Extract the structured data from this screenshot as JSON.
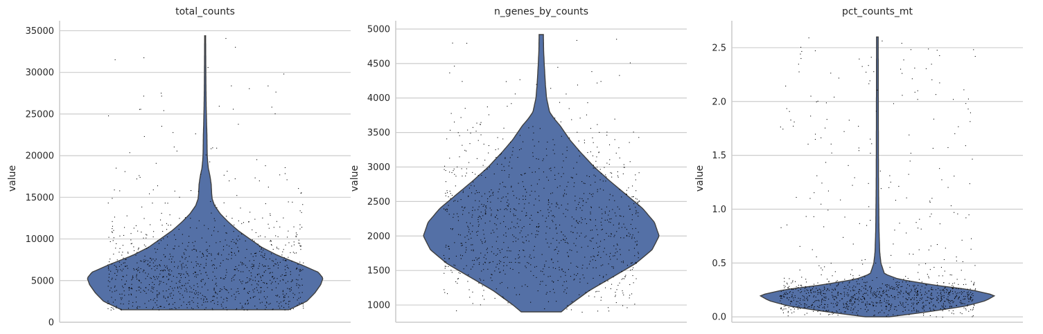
{
  "chart_data": [
    {
      "type": "violin",
      "title": "total_counts",
      "ylabel": "value",
      "ylim": [
        0,
        36200
      ],
      "yticks": [
        0,
        5000,
        10000,
        15000,
        20000,
        25000,
        30000,
        35000
      ],
      "data_range": [
        1500,
        34400
      ],
      "fill_color": "#5470a6",
      "grid": true,
      "density_profile": [
        [
          1500,
          0.71
        ],
        [
          2500,
          0.86
        ],
        [
          3500,
          0.93
        ],
        [
          4500,
          0.98
        ],
        [
          5300,
          1.0
        ],
        [
          6000,
          0.96
        ],
        [
          7000,
          0.8
        ],
        [
          8000,
          0.62
        ],
        [
          9000,
          0.48
        ],
        [
          10000,
          0.38
        ],
        [
          11000,
          0.28
        ],
        [
          12000,
          0.2
        ],
        [
          13000,
          0.13
        ],
        [
          14000,
          0.08
        ],
        [
          14800,
          0.06
        ],
        [
          15500,
          0.055
        ],
        [
          16500,
          0.052
        ],
        [
          17500,
          0.042
        ],
        [
          18500,
          0.027
        ],
        [
          19500,
          0.02
        ],
        [
          20500,
          0.017
        ],
        [
          21500,
          0.016
        ],
        [
          22500,
          0.015
        ],
        [
          24000,
          0.012
        ],
        [
          26000,
          0.009
        ],
        [
          28000,
          0.007
        ],
        [
          30000,
          0.006
        ],
        [
          32000,
          0.005
        ],
        [
          34400,
          0.004
        ]
      ]
    },
    {
      "type": "violin",
      "title": "n_genes_by_counts",
      "ylabel": "value",
      "ylim": [
        750,
        5120
      ],
      "yticks": [
        1000,
        1500,
        2000,
        2500,
        3000,
        3500,
        4000,
        4500,
        5000
      ],
      "data_range": [
        900,
        4920
      ],
      "fill_color": "#5470a6",
      "grid": true,
      "density_profile": [
        [
          900,
          0.17
        ],
        [
          1000,
          0.24
        ],
        [
          1200,
          0.4
        ],
        [
          1400,
          0.6
        ],
        [
          1600,
          0.8
        ],
        [
          1800,
          0.94
        ],
        [
          2000,
          1.0
        ],
        [
          2200,
          0.96
        ],
        [
          2400,
          0.86
        ],
        [
          2600,
          0.72
        ],
        [
          2800,
          0.58
        ],
        [
          3000,
          0.45
        ],
        [
          3200,
          0.34
        ],
        [
          3400,
          0.24
        ],
        [
          3600,
          0.16
        ],
        [
          3700,
          0.11
        ],
        [
          3800,
          0.07
        ],
        [
          4000,
          0.045
        ],
        [
          4200,
          0.035
        ],
        [
          4500,
          0.025
        ],
        [
          4700,
          0.02
        ],
        [
          4920,
          0.018
        ]
      ]
    },
    {
      "type": "violin",
      "title": "pct_counts_mt",
      "ylabel": "value",
      "ylim": [
        -0.05,
        2.75
      ],
      "yticks": [
        0.0,
        0.5,
        1.0,
        1.5,
        2.0,
        2.5
      ],
      "data_range": [
        0.0,
        2.6
      ],
      "fill_color": "#5470a6",
      "grid": true,
      "density_profile": [
        [
          0.0,
          0.1
        ],
        [
          0.05,
          0.45
        ],
        [
          0.1,
          0.75
        ],
        [
          0.15,
          0.92
        ],
        [
          0.2,
          1.0
        ],
        [
          0.25,
          0.8
        ],
        [
          0.3,
          0.45
        ],
        [
          0.35,
          0.18
        ],
        [
          0.4,
          0.06
        ],
        [
          0.5,
          0.03
        ],
        [
          0.6,
          0.02
        ],
        [
          0.8,
          0.014
        ],
        [
          1.0,
          0.012
        ],
        [
          1.2,
          0.01
        ],
        [
          1.5,
          0.009
        ],
        [
          2.0,
          0.008
        ],
        [
          2.6,
          0.007
        ]
      ]
    }
  ]
}
